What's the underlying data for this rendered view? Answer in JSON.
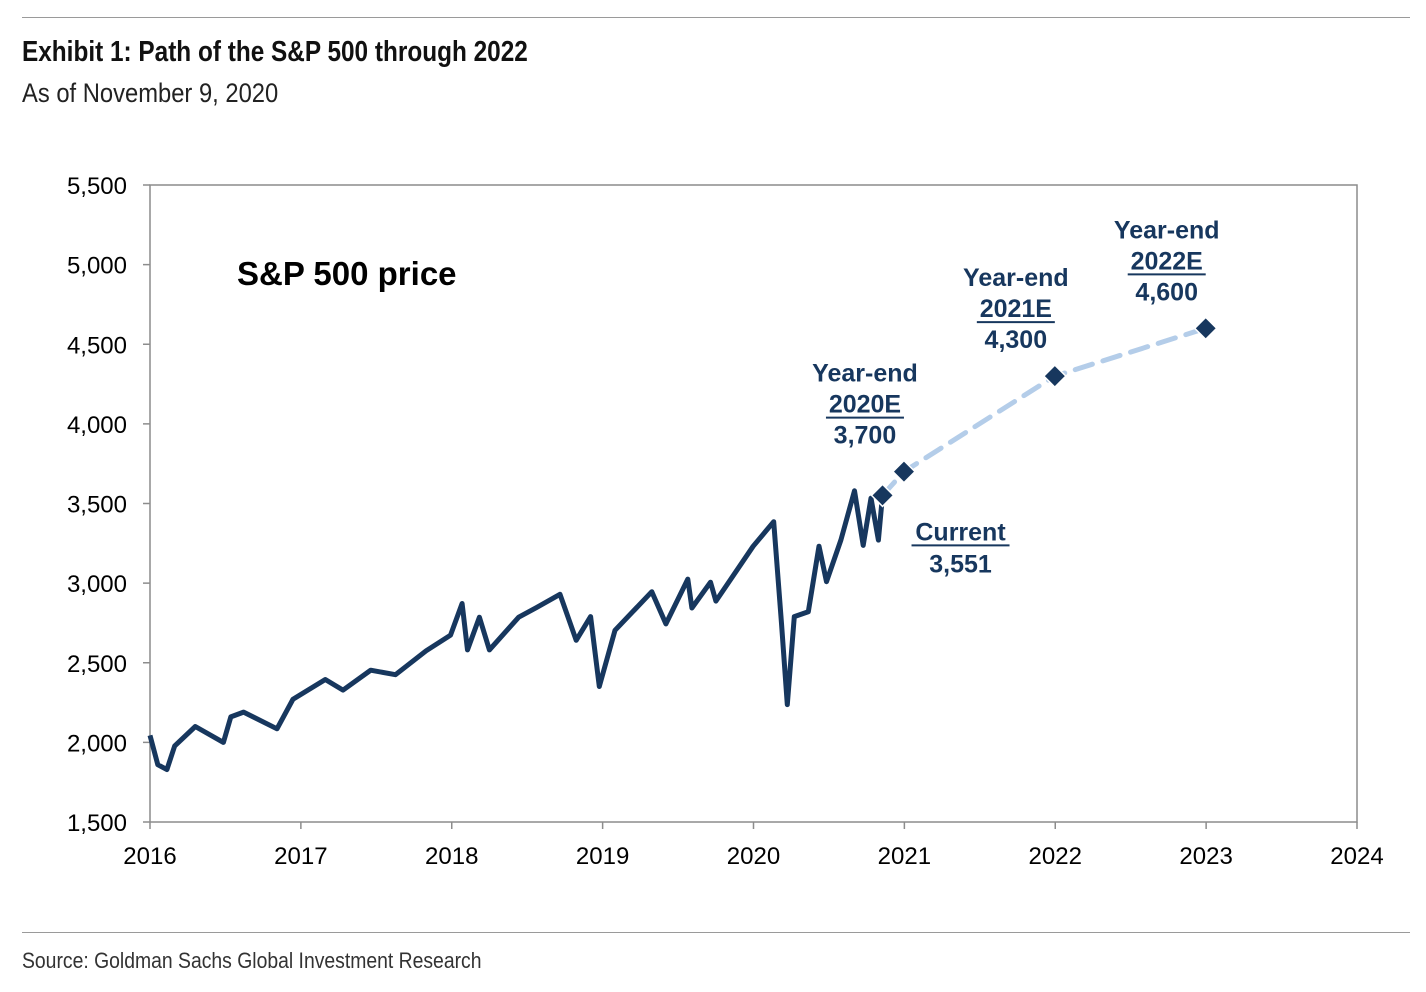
{
  "header": {
    "title": "Exhibit 1: Path of the S&P 500 through 2022",
    "subtitle": "As of November 9, 2020"
  },
  "footer": {
    "source": "Source: Goldman Sachs Global Investment Research"
  },
  "chart_data": {
    "type": "line",
    "title": "",
    "inner_label": "S&P 500 price",
    "xlabel": "",
    "ylabel": "",
    "xlim": [
      2016,
      2024
    ],
    "ylim": [
      1500,
      5500
    ],
    "x_ticks": [
      "2016",
      "2017",
      "2018",
      "2019",
      "2020",
      "2021",
      "2022",
      "2023",
      "2024"
    ],
    "y_ticks": [
      "1,500",
      "2,000",
      "2,500",
      "3,000",
      "3,500",
      "4,000",
      "4,500",
      "5,000",
      "5,500"
    ],
    "grid": false,
    "colors": {
      "history": "#17375e",
      "forecast": "#b4cde9",
      "annotation": "#17375e"
    },
    "series": [
      {
        "style": "solid",
        "points": [
          [
            "2016-01-01",
            2044
          ],
          [
            "2016-01-20",
            1860
          ],
          [
            "2016-02-11",
            1829
          ],
          [
            "2016-03-01",
            1978
          ],
          [
            "2016-04-20",
            2100
          ],
          [
            "2016-06-27",
            2000
          ],
          [
            "2016-07-15",
            2160
          ],
          [
            "2016-08-15",
            2190
          ],
          [
            "2016-11-04",
            2085
          ],
          [
            "2016-12-13",
            2271
          ],
          [
            "2017-03-01",
            2395
          ],
          [
            "2017-04-13",
            2328
          ],
          [
            "2017-06-19",
            2453
          ],
          [
            "2017-08-18",
            2425
          ],
          [
            "2017-10-31",
            2575
          ],
          [
            "2017-12-29",
            2673
          ],
          [
            "2018-01-26",
            2872
          ],
          [
            "2018-02-08",
            2581
          ],
          [
            "2018-03-09",
            2786
          ],
          [
            "2018-04-02",
            2581
          ],
          [
            "2018-06-12",
            2786
          ],
          [
            "2018-07-25",
            2846
          ],
          [
            "2018-09-20",
            2930
          ],
          [
            "2018-10-29",
            2641
          ],
          [
            "2018-12-03",
            2790
          ],
          [
            "2018-12-24",
            2351
          ],
          [
            "2019-01-31",
            2704
          ],
          [
            "2019-04-30",
            2946
          ],
          [
            "2019-06-03",
            2744
          ],
          [
            "2019-07-26",
            3025
          ],
          [
            "2019-08-05",
            2844
          ],
          [
            "2019-09-19",
            3006
          ],
          [
            "2019-10-02",
            2887
          ],
          [
            "2019-12-31",
            3231
          ],
          [
            "2020-02-19",
            3386
          ],
          [
            "2020-03-09",
            2747
          ],
          [
            "2020-03-23",
            2237
          ],
          [
            "2020-04-09",
            2790
          ],
          [
            "2020-05-13",
            2820
          ],
          [
            "2020-06-08",
            3232
          ],
          [
            "2020-06-26",
            3009
          ],
          [
            "2020-07-31",
            3271
          ],
          [
            "2020-09-02",
            3580
          ],
          [
            "2020-09-23",
            3237
          ],
          [
            "2020-10-12",
            3534
          ],
          [
            "2020-10-30",
            3270
          ],
          [
            "2020-11-09",
            3551
          ]
        ]
      },
      {
        "style": "dashed",
        "points": [
          [
            "2020-11-09",
            3551
          ],
          [
            "2020-12-31",
            3700
          ],
          [
            "2021-12-31",
            4300
          ],
          [
            "2022-12-31",
            4600
          ]
        ]
      }
    ],
    "annotations": [
      {
        "line1": "Current",
        "line2": "3,551",
        "date": "2020-11-09",
        "value": 3551
      },
      {
        "line1": "Year-end",
        "line2": "2020E",
        "line3": "3,700",
        "date": "2020-12-31",
        "value": 3700
      },
      {
        "line1": "Year-end",
        "line2": "2021E",
        "line3": "4,300",
        "date": "2021-12-31",
        "value": 4300
      },
      {
        "line1": "Year-end",
        "line2": "2022E",
        "line3": "4,600",
        "date": "2022-12-31",
        "value": 4600
      }
    ]
  }
}
